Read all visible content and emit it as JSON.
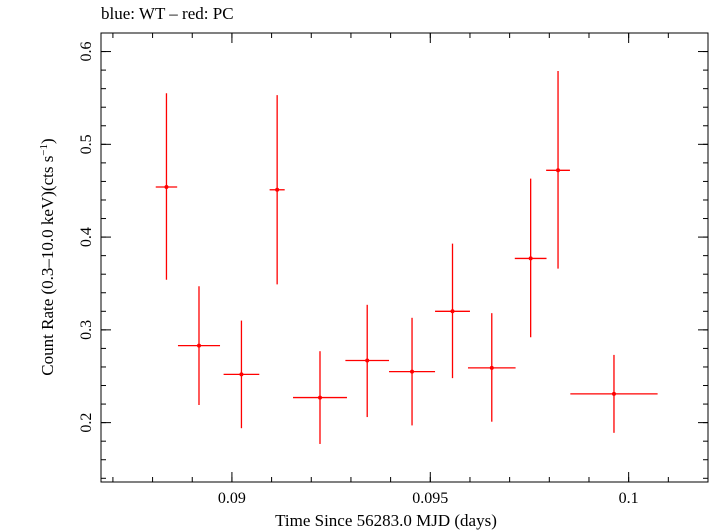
{
  "chart_data": {
    "type": "scatter",
    "title": "blue: WT – red: PC",
    "xlabel": "Time Since 56283.0 MJD (days)",
    "ylabel_main": "Count Rate (0.3–10.0 keV)(cts s",
    "ylabel_sup": "−1",
    "ylabel_end": ")",
    "xlim": [
      0.0867,
      0.102
    ],
    "ylim": [
      0.136,
      0.62
    ],
    "x_ticks": [
      0.09,
      0.095,
      0.1
    ],
    "x_tick_labels": [
      "0.09",
      "0.095",
      "0.1"
    ],
    "y_ticks": [
      0.2,
      0.3,
      0.4,
      0.5,
      0.6
    ],
    "y_tick_labels": [
      "0.2",
      "0.3",
      "0.4",
      "0.5",
      "0.6"
    ],
    "x_minor_step": 0.001,
    "y_minor_step": 0.02,
    "grid": false,
    "series": [
      {
        "color": "#ff0000",
        "points": [
          {
            "x": 0.08835,
            "xerr": 0.00027,
            "y": 0.454,
            "yerr_lo": 0.1,
            "yerr_hi": 0.101
          },
          {
            "x": 0.08917,
            "xerr": 0.00053,
            "y": 0.283,
            "yerr_lo": 0.064,
            "yerr_hi": 0.064
          },
          {
            "x": 0.09024,
            "xerr": 0.00045,
            "y": 0.252,
            "yerr_lo": 0.058,
            "yerr_hi": 0.058
          },
          {
            "x": 0.09114,
            "xerr": 0.00019,
            "y": 0.451,
            "yerr_lo": 0.102,
            "yerr_hi": 0.102
          },
          {
            "x": 0.09222,
            "xerr": 0.00068,
            "y": 0.227,
            "yerr_lo": 0.05,
            "yerr_hi": 0.05
          },
          {
            "x": 0.09341,
            "xerr": 0.00055,
            "y": 0.267,
            "yerr_lo": 0.061,
            "yerr_hi": 0.06
          },
          {
            "x": 0.09454,
            "xerr": 0.00058,
            "y": 0.255,
            "yerr_lo": 0.058,
            "yerr_hi": 0.058
          },
          {
            "x": 0.09556,
            "xerr": 0.00044,
            "y": 0.32,
            "yerr_lo": 0.072,
            "yerr_hi": 0.073
          },
          {
            "x": 0.09655,
            "xerr": 0.0006,
            "y": 0.259,
            "yerr_lo": 0.058,
            "yerr_hi": 0.059
          },
          {
            "x": 0.09753,
            "xerr": 0.0004,
            "y": 0.377,
            "yerr_lo": 0.085,
            "yerr_hi": 0.086
          },
          {
            "x": 0.09822,
            "xerr": 0.0003,
            "y": 0.472,
            "yerr_lo": 0.106,
            "yerr_hi": 0.107
          },
          {
            "x": 0.09963,
            "xerr": 0.0011,
            "y": 0.231,
            "yerr_lo": 0.042,
            "yerr_hi": 0.042
          }
        ]
      }
    ]
  }
}
